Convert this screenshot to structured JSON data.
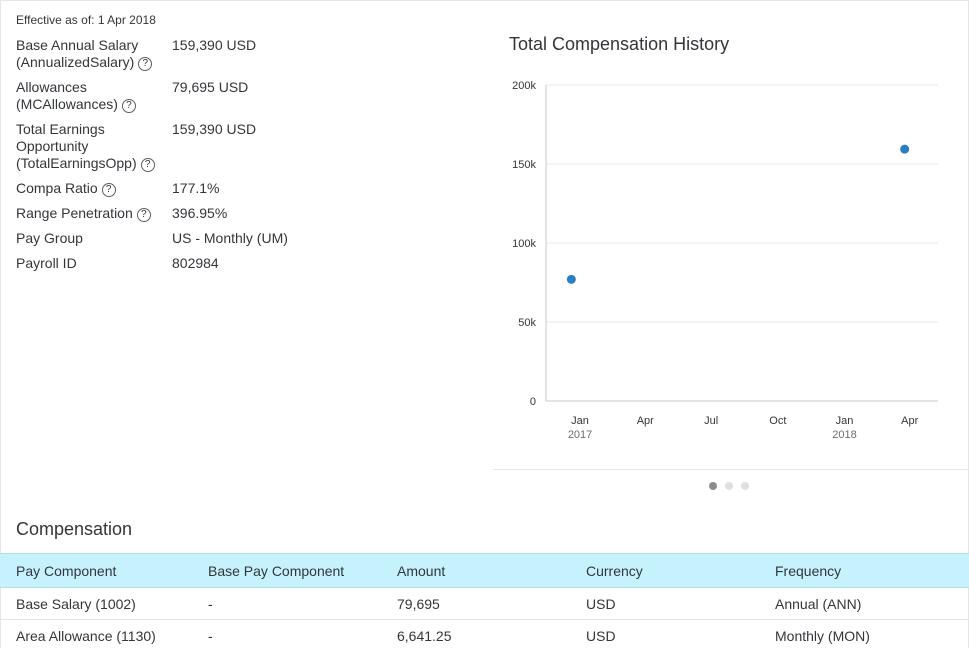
{
  "effective": "Effective as of: 1 Apr 2018",
  "fields": [
    {
      "label_lines": [
        "Base Annual Salary",
        "(AnnualizedSalary)"
      ],
      "help": true,
      "value": "159,390 USD"
    },
    {
      "label_lines": [
        "Allowances",
        "(MCAllowances)"
      ],
      "help": true,
      "value": "79,695 USD"
    },
    {
      "label_lines": [
        "Total Earnings",
        "Opportunity",
        "(TotalEarningsOpp)"
      ],
      "help": true,
      "value": "159,390 USD"
    },
    {
      "label_lines": [
        "Compa Ratio"
      ],
      "help": true,
      "value": "177.1%"
    },
    {
      "label_lines": [
        "Range Penetration"
      ],
      "help": true,
      "value": "396.95%"
    },
    {
      "label_lines": [
        "Pay Group"
      ],
      "help": false,
      "value": "US - Monthly (UM)"
    },
    {
      "label_lines": [
        "Payroll ID"
      ],
      "help": false,
      "value": "802984"
    }
  ],
  "help_glyph": "?",
  "chart_title": "Total Compensation History",
  "chart_data": {
    "type": "scatter",
    "title": "Total Compensation History",
    "xlabel": "",
    "ylabel": "",
    "ylim": [
      0,
      200000
    ],
    "y_ticks": [
      0,
      50000,
      100000,
      150000,
      200000
    ],
    "y_tick_labels": [
      "0",
      "50k",
      "100k",
      "150k",
      "200k"
    ],
    "x_range": [
      "2016-11-15",
      "2018-05-10"
    ],
    "x_ticks": [
      {
        "date": "2017-01-01",
        "label": "Jan",
        "year": "2017"
      },
      {
        "date": "2017-04-01",
        "label": "Apr",
        "year": ""
      },
      {
        "date": "2017-07-01",
        "label": "Jul",
        "year": ""
      },
      {
        "date": "2017-10-01",
        "label": "Oct",
        "year": ""
      },
      {
        "date": "2018-01-01",
        "label": "Jan",
        "year": "2018"
      },
      {
        "date": "2018-04-01",
        "label": "Apr",
        "year": ""
      }
    ],
    "points": [
      {
        "x": "2016-12-20",
        "y": 77000
      },
      {
        "x": "2018-03-25",
        "y": 159390
      }
    ],
    "grid": true,
    "color": "#2b7ec1"
  },
  "carousel": {
    "count": 3,
    "active": 0
  },
  "section_title": "Compensation",
  "table": {
    "headers": [
      "Pay Component",
      "Base Pay Component",
      "Amount",
      "Currency",
      "Frequency"
    ],
    "rows": [
      [
        "Base Salary (1002)",
        "-",
        "79,695",
        "USD",
        "Annual (ANN)"
      ],
      [
        "Area Allowance (1130)",
        "-",
        "6,641.25",
        "USD",
        "Monthly (MON)"
      ]
    ]
  }
}
